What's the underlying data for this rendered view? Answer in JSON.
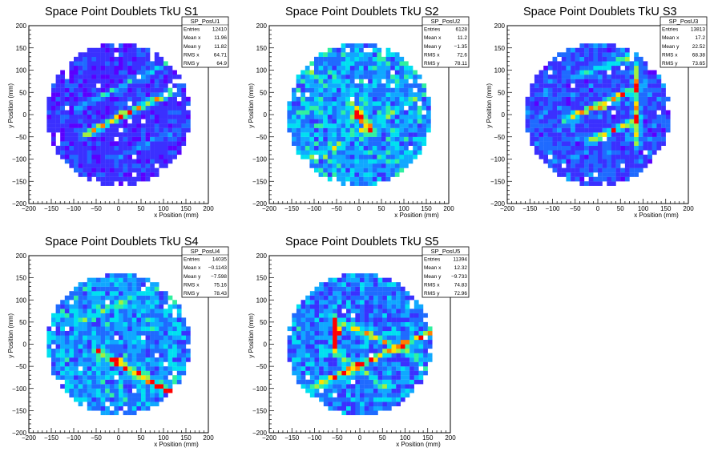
{
  "colors": {
    "palette": [
      "#5a00ff",
      "#3b30ff",
      "#1f6bff",
      "#10a8ff",
      "#00e0f0",
      "#30f0a0",
      "#a0f040",
      "#ffe000",
      "#ff8000",
      "#ff0000"
    ],
    "frame": "#000000",
    "background": "#ffffff"
  },
  "chart_data": [
    {
      "type": "heatmap",
      "title": "Space Point Doublets TkU S1",
      "xlabel": "x Position (mm)",
      "ylabel": "y Position (mm)",
      "xlim": [
        -200,
        200
      ],
      "ylim": [
        -200,
        200
      ],
      "xticks": [
        "−200",
        "−150",
        "−100",
        "−50",
        "0",
        "50",
        "100",
        "150",
        "200"
      ],
      "yticks": [
        "−200",
        "−150",
        "−100",
        "−50",
        "0",
        "50",
        "100",
        "150",
        "200"
      ],
      "grid": false,
      "active_radius": 160,
      "stats": {
        "name": "SP_PosU1",
        "rows": [
          {
            "label": "Entries",
            "value": "12410"
          },
          {
            "label": "Mean x",
            "value": "11.96"
          },
          {
            "label": "Mean y",
            "value": "11.82"
          },
          {
            "label": "RMS x",
            "value": "64.71"
          },
          {
            "label": "RMS y",
            "value": "64.9"
          }
        ]
      },
      "features": [
        {
          "kind": "line",
          "p1": [
            -75,
            -45
          ],
          "p2": [
            125,
            55
          ],
          "intensity": 6,
          "width": 10
        },
        {
          "kind": "line",
          "p1": [
            -90,
            15
          ],
          "p2": [
            110,
            115
          ],
          "intensity": 3,
          "width": 8
        },
        {
          "kind": "line",
          "p1": [
            -10,
            -100
          ],
          "p2": [
            150,
            -25
          ],
          "intensity": 2,
          "width": 8
        },
        {
          "kind": "spot",
          "center": [
            5,
            0
          ],
          "intensity": 8,
          "radius": 12
        }
      ],
      "base_level": 1.2,
      "noise": 0.8
    },
    {
      "type": "heatmap",
      "title": "Space Point Doublets TkU S2",
      "xlabel": "x Position (mm)",
      "ylabel": "y Position (mm)",
      "xlim": [
        -200,
        200
      ],
      "ylim": [
        -200,
        200
      ],
      "xticks": [
        "−200",
        "−150",
        "−100",
        "−50",
        "0",
        "50",
        "100",
        "150",
        "200"
      ],
      "yticks": [
        "−200",
        "−150",
        "−100",
        "−50",
        "0",
        "50",
        "100",
        "150",
        "200"
      ],
      "grid": false,
      "active_radius": 160,
      "stats": {
        "name": "SP_PosU2",
        "rows": [
          {
            "label": "Entries",
            "value": "6128"
          },
          {
            "label": "Mean x",
            "value": "11.2"
          },
          {
            "label": "Mean y",
            "value": "−1.35"
          },
          {
            "label": "RMS x",
            "value": "72.6"
          },
          {
            "label": "RMS y",
            "value": "78.11"
          }
        ]
      },
      "features": [
        {
          "kind": "spot",
          "center": [
            0,
            0
          ],
          "intensity": 9,
          "radius": 14
        },
        {
          "kind": "line",
          "p1": [
            -20,
            30
          ],
          "p2": [
            30,
            -40
          ],
          "intensity": 3,
          "width": 12
        },
        {
          "kind": "line",
          "p1": [
            -100,
            -100
          ],
          "p2": [
            150,
            50
          ],
          "intensity": 2,
          "width": 10
        }
      ],
      "base_level": 2.8,
      "noise": 1.6
    },
    {
      "type": "heatmap",
      "title": "Space Point Doublets TkU S3",
      "xlabel": "x Position (mm)",
      "ylabel": "y Position (mm)",
      "xlim": [
        -200,
        200
      ],
      "ylim": [
        -200,
        200
      ],
      "xticks": [
        "−200",
        "−150",
        "−100",
        "−50",
        "0",
        "50",
        "100",
        "150",
        "200"
      ],
      "yticks": [
        "−200",
        "−150",
        "−100",
        "−50",
        "0",
        "50",
        "100",
        "150",
        "200"
      ],
      "grid": false,
      "active_radius": 160,
      "stats": {
        "name": "SP_PosU3",
        "rows": [
          {
            "label": "Entries",
            "value": "13813"
          },
          {
            "label": "Mean x",
            "value": "17.2"
          },
          {
            "label": "Mean y",
            "value": "22.52"
          },
          {
            "label": "RMS x",
            "value": "68.38"
          },
          {
            "label": "RMS y",
            "value": "73.65"
          }
        ]
      },
      "features": [
        {
          "kind": "line",
          "p1": [
            -70,
            -10
          ],
          "p2": [
            90,
            60
          ],
          "intensity": 6,
          "width": 9
        },
        {
          "kind": "line",
          "p1": [
            -20,
            -60
          ],
          "p2": [
            90,
            -10
          ],
          "intensity": 5,
          "width": 9
        },
        {
          "kind": "line",
          "p1": [
            85,
            -60
          ],
          "p2": [
            85,
            110
          ],
          "intensity": 5,
          "width": 9
        },
        {
          "kind": "line",
          "p1": [
            -60,
            80
          ],
          "p2": [
            120,
            150
          ],
          "intensity": 3,
          "width": 10
        },
        {
          "kind": "spot",
          "center": [
            10,
            15
          ],
          "intensity": 8,
          "radius": 10
        }
      ],
      "base_level": 1.6,
      "noise": 1.0
    },
    {
      "type": "heatmap",
      "title": "Space Point Doublets TkU S4",
      "xlabel": "x Position (mm)",
      "ylabel": "y Position (mm)",
      "xlim": [
        -200,
        200
      ],
      "ylim": [
        -200,
        200
      ],
      "xticks": [
        "−200",
        "−150",
        "−100",
        "−50",
        "0",
        "50",
        "100",
        "150",
        "200"
      ],
      "yticks": [
        "−200",
        "−150",
        "−100",
        "−50",
        "0",
        "50",
        "100",
        "150",
        "200"
      ],
      "grid": false,
      "active_radius": 160,
      "stats": {
        "name": "SP_PosU4",
        "rows": [
          {
            "label": "Entries",
            "value": "14035"
          },
          {
            "label": "Mean x",
            "value": "−0.1143"
          },
          {
            "label": "Mean y",
            "value": "−7.598"
          },
          {
            "label": "RMS x",
            "value": "75.16"
          },
          {
            "label": "RMS y",
            "value": "78.43"
          }
        ]
      },
      "features": [
        {
          "kind": "line",
          "p1": [
            -50,
            -15
          ],
          "p2": [
            120,
            -110
          ],
          "intensity": 6,
          "width": 10
        },
        {
          "kind": "line",
          "p1": [
            -120,
            40
          ],
          "p2": [
            140,
            150
          ],
          "intensity": 2,
          "width": 10
        },
        {
          "kind": "spot",
          "center": [
            -5,
            -40
          ],
          "intensity": 8,
          "radius": 10
        }
      ],
      "base_level": 2.6,
      "noise": 1.3
    },
    {
      "type": "heatmap",
      "title": "Space Point Doublets TkU S5",
      "xlabel": "x Position (mm)",
      "ylabel": "y Position (mm)",
      "xlim": [
        -200,
        200
      ],
      "ylim": [
        -200,
        200
      ],
      "xticks": [
        "−200",
        "−150",
        "−100",
        "−50",
        "0",
        "50",
        "100",
        "150",
        "200"
      ],
      "yticks": [
        "−200",
        "−150",
        "−100",
        "−50",
        "0",
        "50",
        "100",
        "150",
        "200"
      ],
      "grid": false,
      "active_radius": 160,
      "stats": {
        "name": "SP_PosU5",
        "rows": [
          {
            "label": "Entries",
            "value": "11394"
          },
          {
            "label": "Mean x",
            "value": "12.32"
          },
          {
            "label": "Mean y",
            "value": "−9.733"
          },
          {
            "label": "RMS x",
            "value": "74.83"
          },
          {
            "label": "RMS y",
            "value": "72.96"
          }
        ]
      },
      "features": [
        {
          "kind": "line",
          "p1": [
            -55,
            60
          ],
          "p2": [
            -55,
            -20
          ],
          "intensity": 7,
          "width": 9
        },
        {
          "kind": "line",
          "p1": [
            -110,
            -100
          ],
          "p2": [
            160,
            30
          ],
          "intensity": 5,
          "width": 10
        },
        {
          "kind": "line",
          "p1": [
            -40,
            50
          ],
          "p2": [
            130,
            -30
          ],
          "intensity": 4,
          "width": 10
        },
        {
          "kind": "line",
          "p1": [
            -40,
            -30
          ],
          "p2": [
            60,
            -100
          ],
          "intensity": 3,
          "width": 10
        },
        {
          "kind": "spot",
          "center": [
            -50,
            30
          ],
          "intensity": 9,
          "radius": 10
        }
      ],
      "base_level": 2.2,
      "noise": 1.4
    }
  ]
}
